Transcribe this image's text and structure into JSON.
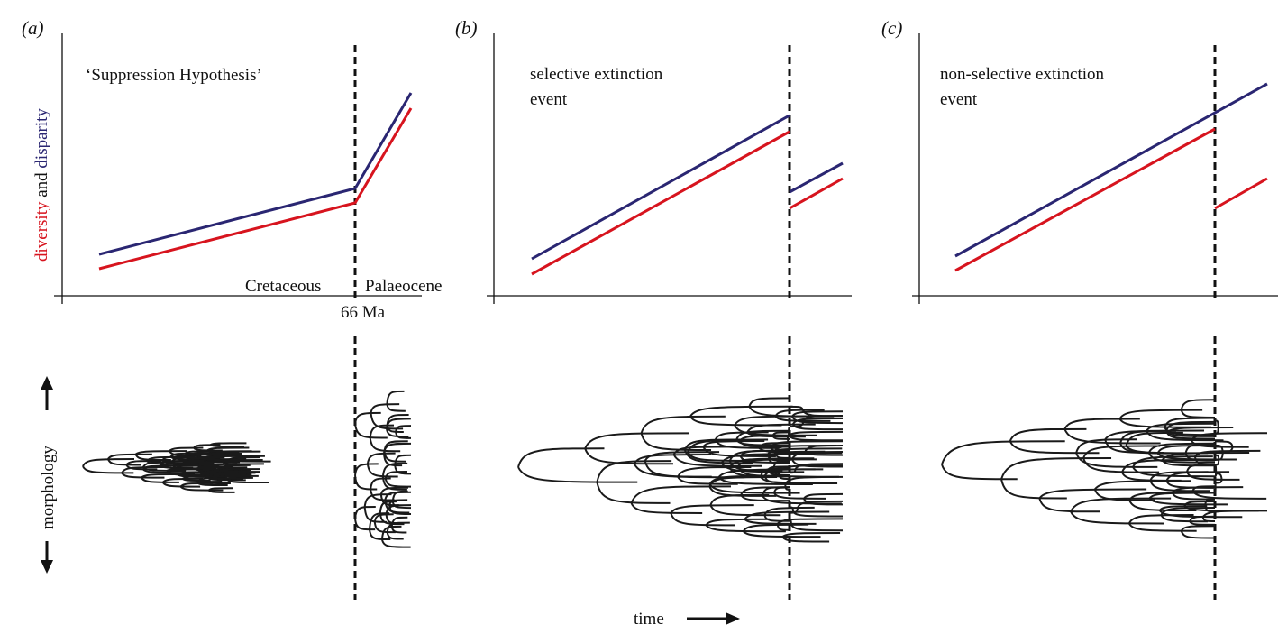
{
  "colors": {
    "diversity": "#d7141e",
    "disparity": "#2a2672",
    "ink": "#111111"
  },
  "panels": [
    {
      "label": "(a)",
      "title_lines": [
        "‘Suppression Hypothesis’"
      ],
      "period_before": "Cretaceous",
      "period_after": "Palaeocene",
      "boundary": "66 Ma"
    },
    {
      "label": "(b)",
      "title_lines": [
        "selective extinction",
        "event"
      ]
    },
    {
      "label": "(c)",
      "title_lines": [
        "non-selective extinction",
        "event"
      ]
    }
  ],
  "y_axis_label": {
    "part1": "diversity",
    "part2": " and ",
    "part3": "disparity"
  },
  "morphology_label": "morphology",
  "time_label": "time"
}
